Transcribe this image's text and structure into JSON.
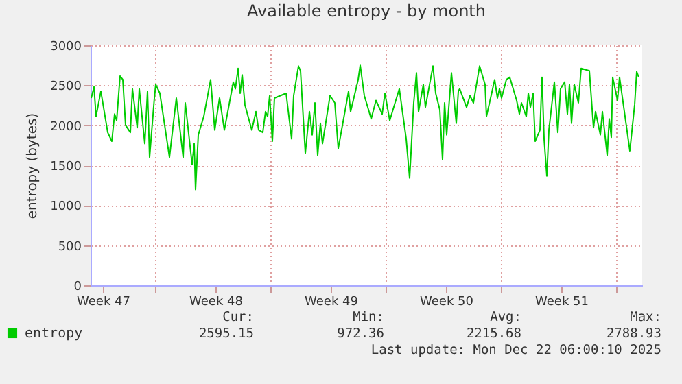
{
  "chart_data": {
    "type": "line",
    "title": "Available entropy - by month",
    "ylabel": "entropy (bytes)",
    "x": [
      "2025-11-20T03:00",
      "2025-11-20T07:00",
      "2025-11-20T10:00",
      "2025-11-20T17:00",
      "2025-11-21T03:00",
      "2025-11-21T09:00",
      "2025-11-21T13:00",
      "2025-11-21T16:00",
      "2025-11-21T21:00",
      "2025-11-22T01:00",
      "2025-11-22T05:00",
      "2025-11-22T12:00",
      "2025-11-22T15:00",
      "2025-11-22T22:00",
      "2025-11-23T01:00",
      "2025-11-23T09:00",
      "2025-11-23T13:00",
      "2025-11-23T16:00",
      "2025-11-23T23:00",
      "2025-11-24T01:00",
      "2025-11-24T07:00",
      "2025-11-24T21:00",
      "2025-11-25T07:00",
      "2025-11-25T17:00",
      "2025-11-25T20:00",
      "2025-11-26T06:00",
      "2025-11-26T09:00",
      "2025-11-26T11:00",
      "2025-11-26T15:00",
      "2025-11-26T23:00",
      "2025-11-27T09:00",
      "2025-11-27T15:00",
      "2025-11-27T22:00",
      "2025-11-28T05:00",
      "2025-11-28T15:00",
      "2025-11-28T18:00",
      "2025-11-28T21:00",
      "2025-11-29T01:00",
      "2025-11-29T04:00",
      "2025-11-29T07:00",
      "2025-11-29T11:00",
      "2025-11-29T21:00",
      "2025-11-30T03:00",
      "2025-11-30T07:00",
      "2025-11-30T13:00",
      "2025-11-30T17:00",
      "2025-11-30T20:00",
      "2025-11-30T23:00",
      "2025-12-01T03:00",
      "2025-12-01T06:00",
      "2025-12-01T23:00",
      "2025-12-02T07:00",
      "2025-12-02T10:00",
      "2025-12-02T17:00",
      "2025-12-02T20:00",
      "2025-12-03T03:00",
      "2025-12-03T09:00",
      "2025-12-03T13:00",
      "2025-12-03T17:00",
      "2025-12-03T21:00",
      "2025-12-04T01:00",
      "2025-12-04T04:00",
      "2025-12-04T15:00",
      "2025-12-04T22:00",
      "2025-12-05T03:00",
      "2025-12-05T15:00",
      "2025-12-05T18:00",
      "2025-12-05T21:00",
      "2025-12-06T08:00",
      "2025-12-06T11:00",
      "2025-12-06T17:00",
      "2025-12-07T03:00",
      "2025-12-07T10:00",
      "2025-12-07T19:00",
      "2025-12-07T23:00",
      "2025-12-08T06:00",
      "2025-12-08T20:00",
      "2025-12-09T06:00",
      "2025-12-09T11:00",
      "2025-12-09T17:00",
      "2025-12-09T21:00",
      "2025-12-10T00:00",
      "2025-12-10T07:00",
      "2025-12-10T10:00",
      "2025-12-10T21:00",
      "2025-12-11T01:00",
      "2025-12-11T07:00",
      "2025-12-11T11:00",
      "2025-12-11T14:00",
      "2025-12-11T17:00",
      "2025-12-12T00:00",
      "2025-12-12T07:00",
      "2025-12-12T10:00",
      "2025-12-12T12:00",
      "2025-12-12T22:00",
      "2025-12-13T03:00",
      "2025-12-13T08:00",
      "2025-12-13T17:00",
      "2025-12-14T01:00",
      "2025-12-14T03:00",
      "2025-12-14T15:00",
      "2025-12-14T19:00",
      "2025-12-14T22:00",
      "2025-12-15T01:00",
      "2025-12-15T08:00",
      "2025-12-15T13:00",
      "2025-12-15T23:00",
      "2025-12-16T03:00",
      "2025-12-16T06:00",
      "2025-12-16T13:00",
      "2025-12-16T16:00",
      "2025-12-16T19:00",
      "2025-12-16T23:00",
      "2025-12-17T02:00",
      "2025-12-17T09:00",
      "2025-12-17T12:00",
      "2025-12-17T15:00",
      "2025-12-17T19:00",
      "2025-12-17T22:00",
      "2025-12-18T06:00",
      "2025-12-18T11:00",
      "2025-12-18T15:00",
      "2025-12-18T21:00",
      "2025-12-19T01:00",
      "2025-12-19T04:00",
      "2025-12-19T07:00",
      "2025-12-19T11:00",
      "2025-12-19T17:00",
      "2025-12-19T21:00",
      "2025-12-20T09:00",
      "2025-12-20T15:00",
      "2025-12-20T18:00",
      "2025-12-21T01:00",
      "2025-12-21T04:00",
      "2025-12-21T11:00",
      "2025-12-21T14:00",
      "2025-12-21T17:00",
      "2025-12-21T19:00",
      "2025-12-22T02:00",
      "2025-12-22T05:00",
      "2025-12-22T13:00",
      "2025-12-22T20:00",
      "2025-12-23T03:00",
      "2025-12-23T06:00",
      "2025-12-23T09:00"
    ],
    "series": [
      {
        "name": "entropy",
        "color": "#00cc00",
        "values": [
          2340,
          2480,
          2110,
          2425,
          1910,
          1800,
          2140,
          2060,
          2615,
          2570,
          2000,
          1910,
          2455,
          1970,
          2455,
          1770,
          2425,
          1600,
          2340,
          2510,
          2400,
          1600,
          2340,
          1600,
          2280,
          1510,
          1770,
          1195,
          1880,
          2110,
          2570,
          1940,
          2340,
          1940,
          2400,
          2540,
          2455,
          2710,
          2400,
          2630,
          2255,
          1940,
          2170,
          1940,
          1910,
          2170,
          2110,
          2370,
          1800,
          2340,
          2400,
          1830,
          2370,
          2740,
          2680,
          1650,
          2170,
          1880,
          2280,
          1625,
          2025,
          1770,
          2370,
          2280,
          1710,
          2280,
          2425,
          2170,
          2570,
          2750,
          2370,
          2080,
          2310,
          2140,
          2400,
          2060,
          2455,
          1830,
          1340,
          2280,
          2655,
          2170,
          2510,
          2225,
          2740,
          2400,
          2195,
          1570,
          2280,
          1880,
          2655,
          2025,
          2425,
          2455,
          2225,
          2370,
          2280,
          2740,
          2510,
          2110,
          2570,
          2340,
          2455,
          2340,
          2570,
          2600,
          2310,
          2140,
          2280,
          2110,
          2400,
          2225,
          2400,
          1800,
          1940,
          2600,
          1830,
          1365,
          1940,
          2540,
          1910,
          2455,
          2540,
          2140,
          2510,
          2025,
          2510,
          2280,
          2710,
          2680,
          1970,
          2170,
          1880,
          2170,
          1625,
          2080,
          1850,
          2600,
          2310,
          2600,
          2110,
          1680,
          2255,
          2670,
          2600
        ]
      }
    ],
    "xlim": [
      "2025-11-20T02:00",
      "2025-12-23T14:00"
    ],
    "xticks": [
      {
        "value": "2025-11-20T20:00",
        "label": "Week 47"
      },
      {
        "value": "2025-11-24T00:00",
        "label": null
      },
      {
        "value": "2025-11-27T16:00",
        "label": "Week 48"
      },
      {
        "value": "2025-12-01T00:00",
        "label": null
      },
      {
        "value": "2025-12-04T16:00",
        "label": "Week 49"
      },
      {
        "value": "2025-12-08T00:00",
        "label": null
      },
      {
        "value": "2025-12-11T16:00",
        "label": "Week 50"
      },
      {
        "value": "2025-12-15T00:00",
        "label": null
      },
      {
        "value": "2025-12-18T16:00",
        "label": "Week 51"
      },
      {
        "value": "2025-12-22T00:00",
        "label": null
      }
    ],
    "ylim": [
      0,
      3000
    ],
    "yticks": [
      0,
      500,
      1000,
      1500,
      2000,
      2500,
      3000
    ],
    "grid": true,
    "legend": "bottom left",
    "marker": "none",
    "line_style": "solid",
    "annotations": [
      "Cur:",
      "2595.15",
      "Min:",
      "972.36",
      "Avg:",
      "2215.68",
      "Max:",
      "2788.93",
      "Last update: Mon Dec 22 06:00:10 2025"
    ]
  }
}
